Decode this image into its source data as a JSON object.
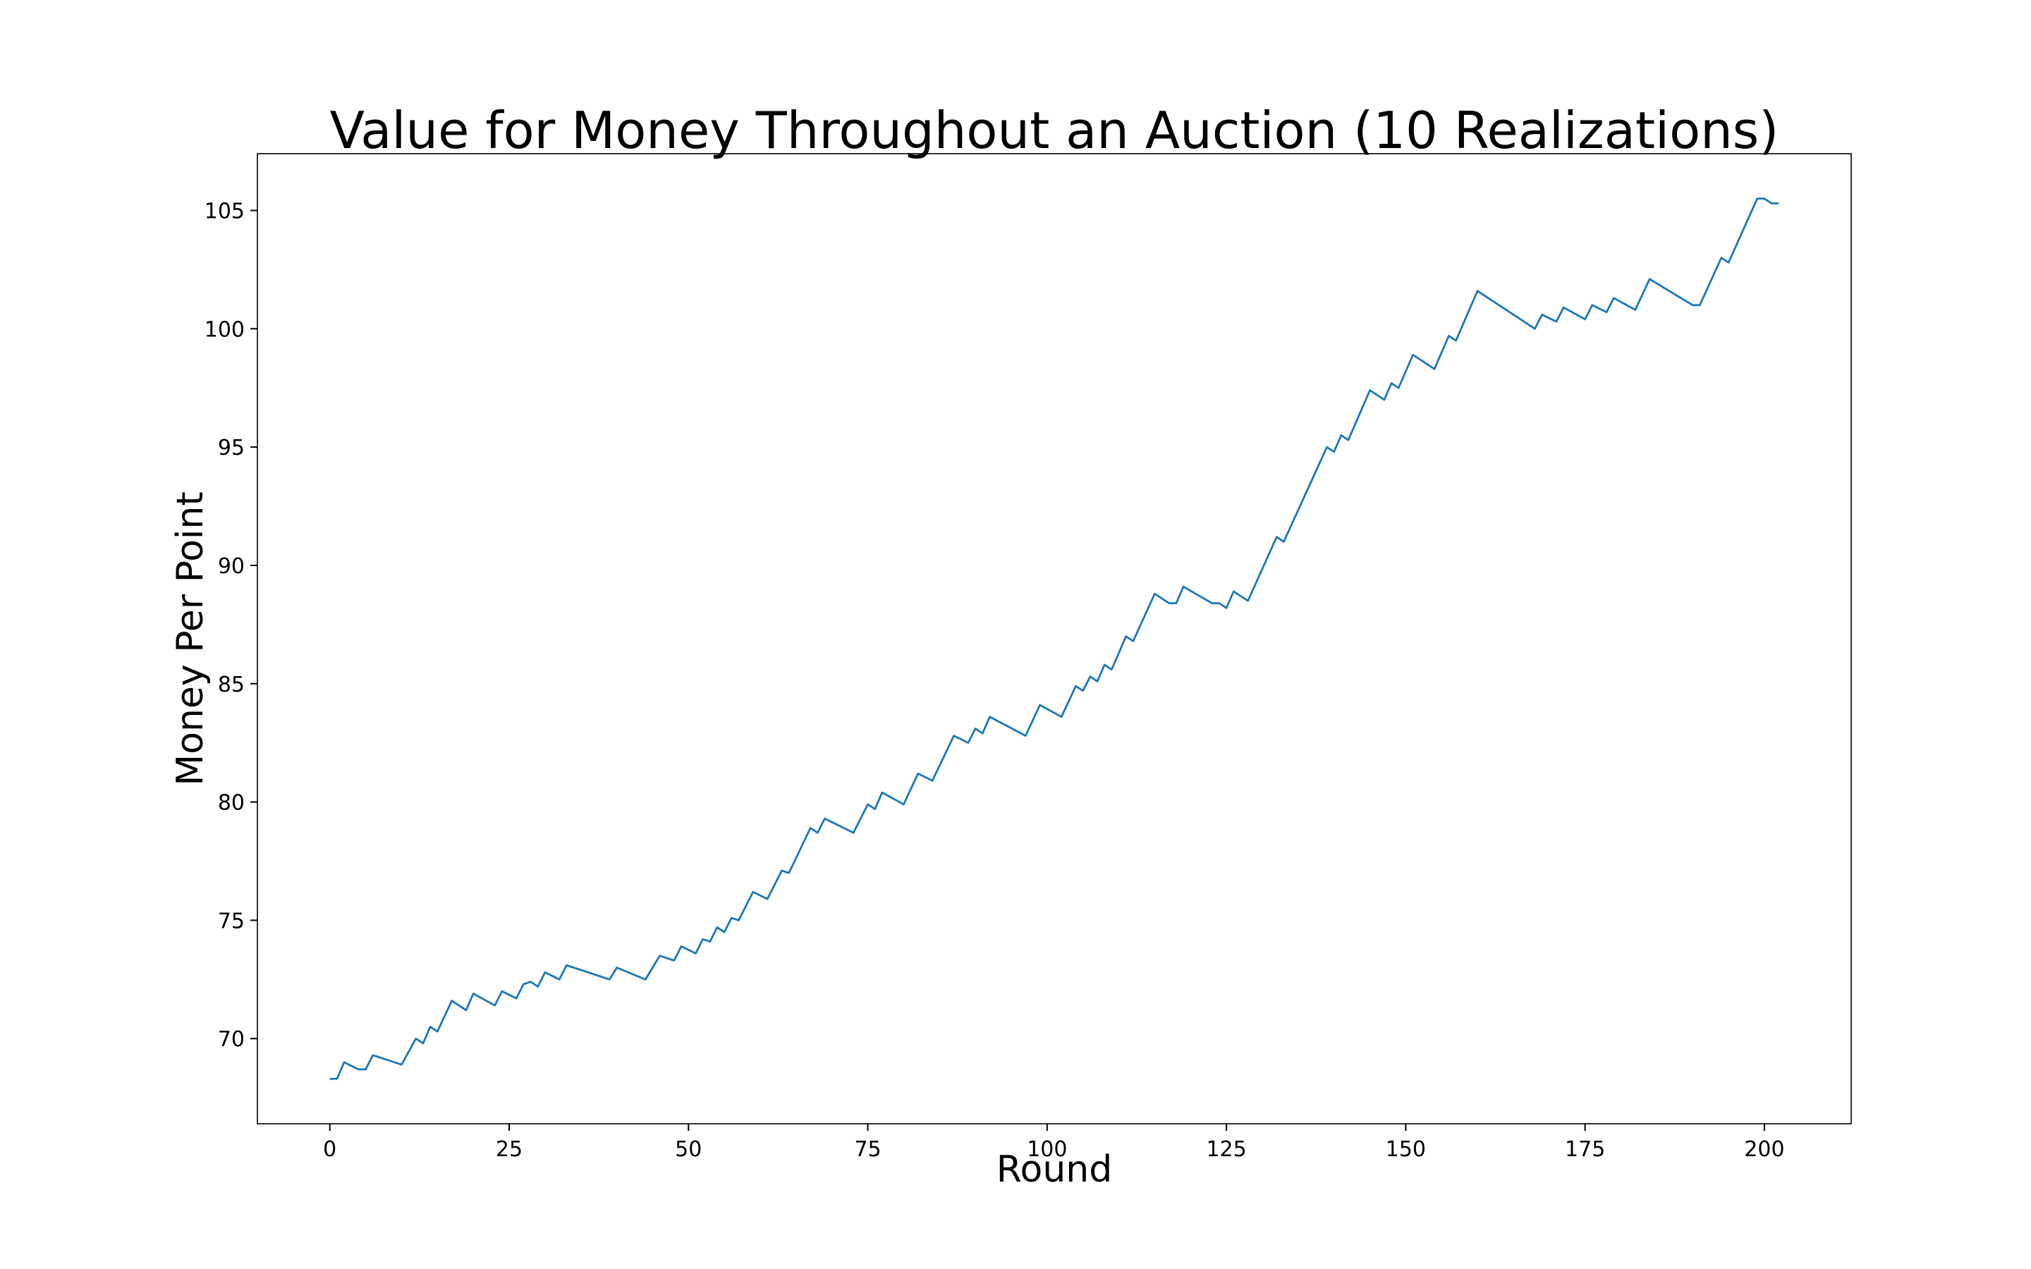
{
  "chart_data": {
    "type": "line",
    "title": "Value for Money Throughout an Auction (10 Realizations)",
    "x_label": "Round",
    "y_label": "Money Per Point",
    "x": [
      0,
      1,
      2,
      4,
      5,
      6,
      10,
      12,
      13,
      14,
      15,
      17,
      19,
      20,
      23,
      24,
      26,
      27,
      28,
      29,
      30,
      32,
      33,
      39,
      40,
      44,
      46,
      48,
      49,
      51,
      52,
      53,
      54,
      55,
      56,
      57,
      59,
      61,
      63,
      64,
      67,
      68,
      69,
      73,
      75,
      76,
      77,
      80,
      82,
      84,
      87,
      89,
      90,
      91,
      92,
      97,
      99,
      102,
      104,
      105,
      106,
      107,
      108,
      109,
      111,
      112,
      115,
      117,
      118,
      119,
      123,
      124,
      125,
      126,
      128,
      132,
      133,
      139,
      140,
      141,
      142,
      145,
      147,
      148,
      149,
      151,
      154,
      156,
      157,
      160,
      168,
      169,
      171,
      172,
      175,
      176,
      178,
      179,
      182,
      184,
      190,
      191,
      194,
      195,
      199,
      200,
      201,
      202
    ],
    "series": [
      {
        "name": "Money Per Point",
        "color": "#1f77b4",
        "values": [
          68.3,
          68.3,
          69.0,
          68.7,
          68.7,
          69.3,
          68.9,
          70.0,
          69.8,
          70.5,
          70.3,
          71.6,
          71.2,
          71.9,
          71.4,
          72.0,
          71.7,
          72.3,
          72.4,
          72.2,
          72.8,
          72.5,
          73.1,
          72.5,
          73.0,
          72.5,
          73.5,
          73.3,
          73.9,
          73.6,
          74.2,
          74.1,
          74.7,
          74.5,
          75.1,
          75.0,
          76.2,
          75.9,
          77.1,
          77.0,
          78.9,
          78.7,
          79.3,
          78.7,
          79.9,
          79.7,
          80.4,
          79.9,
          81.2,
          80.9,
          82.8,
          82.5,
          83.1,
          82.9,
          83.6,
          82.8,
          84.1,
          83.6,
          84.9,
          84.7,
          85.3,
          85.1,
          85.8,
          85.6,
          87.0,
          86.8,
          88.8,
          88.4,
          88.4,
          89.1,
          88.4,
          88.4,
          88.2,
          88.9,
          88.5,
          91.2,
          91.0,
          95.0,
          94.8,
          95.5,
          95.3,
          97.4,
          97.0,
          97.7,
          97.5,
          98.9,
          98.3,
          99.7,
          99.5,
          101.6,
          100.0,
          100.6,
          100.3,
          100.9,
          100.4,
          101.0,
          100.7,
          101.3,
          100.8,
          102.1,
          101.0,
          101.0,
          103.0,
          102.8,
          105.5,
          105.5,
          105.3,
          105.3
        ]
      }
    ],
    "xlim": [
      -10.1,
      212.1
    ],
    "ylim": [
      66.4,
      107.4
    ],
    "xticks": [
      0,
      25,
      50,
      75,
      100,
      125,
      150,
      175,
      200
    ],
    "yticks": [
      70,
      75,
      80,
      85,
      90,
      95,
      100,
      105
    ],
    "grid": false
  }
}
